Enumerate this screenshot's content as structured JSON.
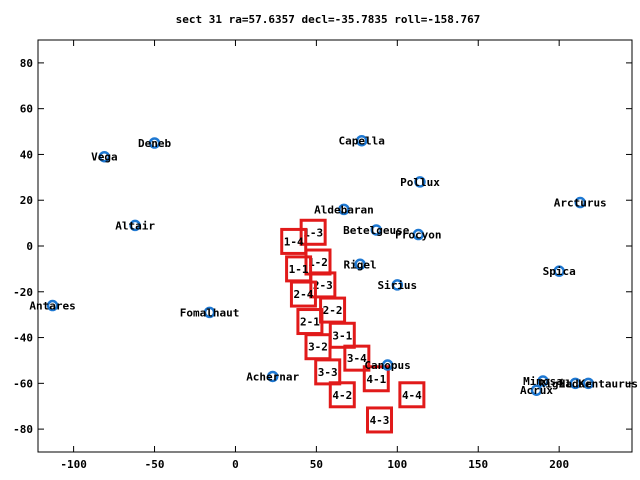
{
  "chart_data": {
    "type": "scatter",
    "title": "sect 31 ra=57.6357 decl=-35.7835 roll=-158.767",
    "xlabel": "",
    "ylabel": "",
    "xlim": [
      -122,
      245
    ],
    "ylim": [
      -90,
      90
    ],
    "xticks": [
      -100,
      -50,
      0,
      50,
      100,
      150,
      200
    ],
    "yticks": [
      -80,
      -60,
      -40,
      -20,
      0,
      20,
      40,
      60,
      80
    ],
    "grid": false,
    "legend": "none",
    "colors": {
      "star": "#1e78d2",
      "box": "#e11a1a",
      "axis": "#000000"
    },
    "stars": [
      {
        "name": "Deneb",
        "x": -50,
        "y": 45
      },
      {
        "name": "Vega",
        "x": -81,
        "y": 39
      },
      {
        "name": "Capella",
        "x": 78,
        "y": 46
      },
      {
        "name": "Pollux",
        "x": 114,
        "y": 28
      },
      {
        "name": "Arcturus",
        "x": 213,
        "y": 19
      },
      {
        "name": "Aldebaran",
        "x": 67,
        "y": 16
      },
      {
        "name": "Altair",
        "x": -62,
        "y": 9
      },
      {
        "name": "Betelgeuse",
        "x": 87,
        "y": 7
      },
      {
        "name": "Procyon",
        "x": 113,
        "y": 5
      },
      {
        "name": "Rigel",
        "x": 77,
        "y": -8
      },
      {
        "name": "Spica",
        "x": 200,
        "y": -11
      },
      {
        "name": "Sirius",
        "x": 100,
        "y": -17
      },
      {
        "name": "Antares",
        "x": -113,
        "y": -26
      },
      {
        "name": "Fomalhaut",
        "x": -16,
        "y": -29
      },
      {
        "name": "Canopus",
        "x": 94,
        "y": -52
      },
      {
        "name": "Achernar",
        "x": 23,
        "y": -57
      },
      {
        "name": "Mimosa",
        "x": 190,
        "y": -59
      },
      {
        "name": "Hadar",
        "x": 210,
        "y": -60
      },
      {
        "name": "Rigil Kentaurus",
        "x": 218,
        "y": -60
      },
      {
        "name": "Acrux",
        "x": 186,
        "y": -63
      }
    ],
    "boxes": [
      {
        "label": "1-3",
        "x": 48,
        "y": 6
      },
      {
        "label": "1-4",
        "x": 36,
        "y": 2
      },
      {
        "label": "1-2",
        "x": 51,
        "y": -7
      },
      {
        "label": "1-1",
        "x": 39,
        "y": -10
      },
      {
        "label": "2-3",
        "x": 54,
        "y": -17
      },
      {
        "label": "2-4",
        "x": 42,
        "y": -21
      },
      {
        "label": "2-2",
        "x": 60,
        "y": -28
      },
      {
        "label": "2-1",
        "x": 46,
        "y": -33
      },
      {
        "label": "3-1",
        "x": 66,
        "y": -39
      },
      {
        "label": "3-2",
        "x": 51,
        "y": -44
      },
      {
        "label": "3-4",
        "x": 75,
        "y": -49
      },
      {
        "label": "3-3",
        "x": 57,
        "y": -55
      },
      {
        "label": "4-1",
        "x": 87,
        "y": -58
      },
      {
        "label": "4-2",
        "x": 66,
        "y": -65
      },
      {
        "label": "4-4",
        "x": 109,
        "y": -65
      },
      {
        "label": "4-3",
        "x": 89,
        "y": -76
      }
    ]
  }
}
